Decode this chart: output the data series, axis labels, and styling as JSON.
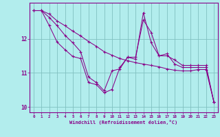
{
  "title": "",
  "xlabel": "Windchill (Refroidissement éolien,°C)",
  "ylabel": "",
  "background_color": "#b2eded",
  "grid_color": "#80c0c0",
  "line_color": "#880088",
  "xlim": [
    -0.5,
    23.5
  ],
  "ylim": [
    9.85,
    13.05
  ],
  "yticks": [
    10,
    11,
    12
  ],
  "xticks": [
    0,
    1,
    2,
    3,
    4,
    5,
    6,
    7,
    8,
    9,
    10,
    11,
    12,
    13,
    14,
    15,
    16,
    17,
    18,
    19,
    20,
    21,
    22,
    23
  ],
  "hours": [
    0,
    1,
    2,
    3,
    4,
    5,
    6,
    7,
    8,
    9,
    10,
    11,
    12,
    13,
    14,
    15,
    16,
    17,
    18,
    19,
    20,
    21,
    22,
    23
  ],
  "line1": [
    12.82,
    12.82,
    12.72,
    12.52,
    12.38,
    12.22,
    12.08,
    11.92,
    11.78,
    11.62,
    11.52,
    11.42,
    11.36,
    11.3,
    11.26,
    11.22,
    11.18,
    11.12,
    11.08,
    11.06,
    11.06,
    11.1,
    11.1,
    10.15
  ],
  "line2": [
    12.82,
    12.82,
    12.62,
    12.38,
    12.1,
    11.88,
    11.62,
    10.88,
    10.72,
    10.48,
    11.06,
    11.12,
    11.46,
    11.46,
    12.55,
    12.18,
    11.5,
    11.5,
    11.38,
    11.22,
    11.22,
    11.22,
    11.22,
    10.15
  ],
  "line3": [
    12.82,
    12.82,
    12.38,
    11.9,
    11.68,
    11.48,
    11.42,
    10.72,
    10.66,
    10.42,
    10.52,
    11.16,
    11.46,
    11.4,
    12.76,
    11.88,
    11.5,
    11.56,
    11.26,
    11.16,
    11.16,
    11.16,
    11.16,
    10.15
  ]
}
